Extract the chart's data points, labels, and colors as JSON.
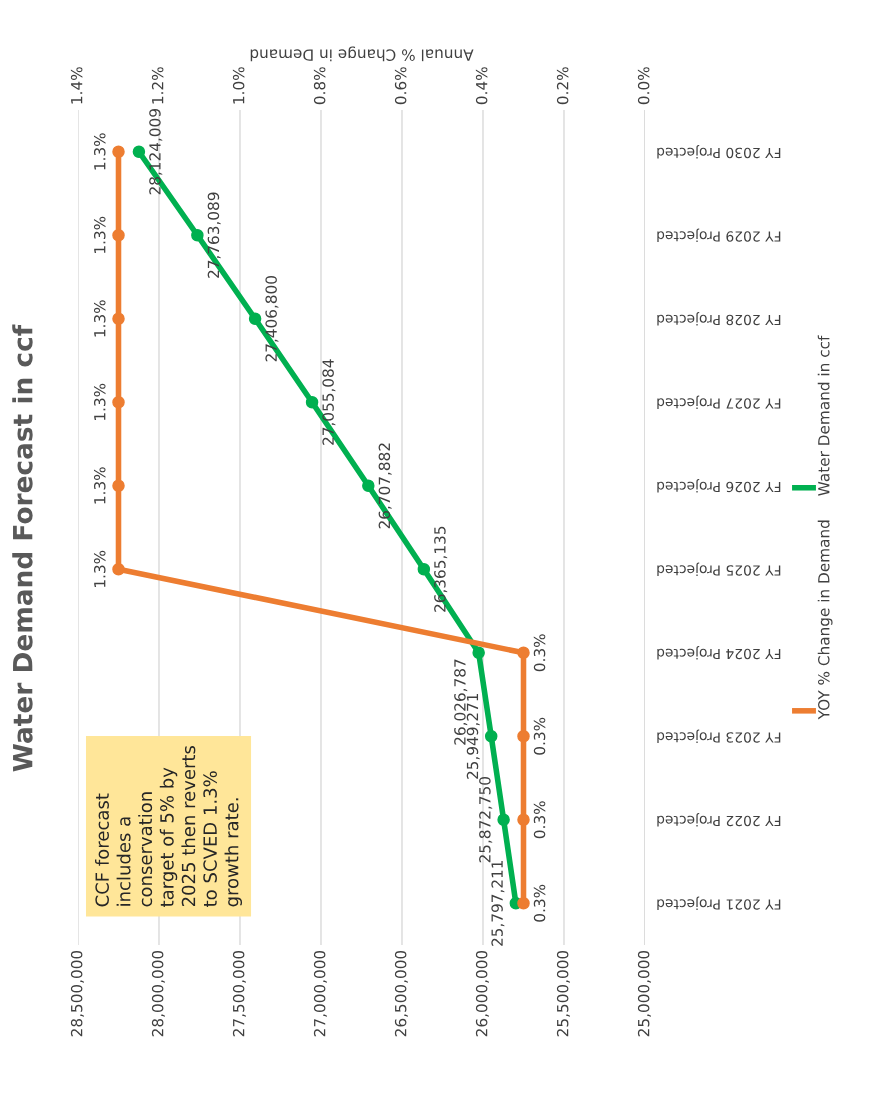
{
  "chart_data": {
    "type": "line",
    "orientation": "horizontal",
    "title": "Water Demand Forecast in ccf",
    "x2label": "Annual % Change in Demand",
    "categories": [
      "FY 2030 Projected",
      "FY 2029 Projected",
      "FY 2028 Projected",
      "FY 2027 Projected",
      "FY 2026 Projected",
      "FY 2025 Projected",
      "FY 2024 Projected",
      "FY 2023 Projected",
      "FY 2022 Projected",
      "FY 2021 Projected"
    ],
    "series": [
      {
        "name": "Water Demand in ccf",
        "color": "#00b050",
        "values": [
          28124009,
          27763089,
          27406800,
          27055084,
          26707882,
          26365135,
          26026787,
          25949271,
          25872750,
          25797211
        ],
        "value_labels": [
          "28,124,009",
          "27,763,089",
          "27,406,800",
          "27,055,084",
          "26,707,882",
          "26,365,135",
          "26,026,787",
          "25,949,271",
          "25,872,750",
          "25,797,211"
        ]
      },
      {
        "name": "YOY % Change in Demand",
        "color": "#ed7d31",
        "axis": "x2",
        "values": [
          1.3,
          1.3,
          1.3,
          1.3,
          1.3,
          1.3,
          0.3,
          0.3,
          0.3,
          0.3
        ],
        "value_labels": [
          "1.3%",
          "1.3%",
          "1.3%",
          "1.3%",
          "1.3%",
          "1.3%",
          "0.3%",
          "0.3%",
          "0.3%",
          "0.3%"
        ]
      }
    ],
    "xlim": [
      28500000,
      25000000
    ],
    "xticks": [
      {
        "value": 28500000,
        "label": "28,500,000"
      },
      {
        "value": 28000000,
        "label": "28,000,000"
      },
      {
        "value": 27500000,
        "label": "27,500,000"
      },
      {
        "value": 27000000,
        "label": "27,000,000"
      },
      {
        "value": 26500000,
        "label": "26,500,000"
      },
      {
        "value": 26000000,
        "label": "26,000,000"
      },
      {
        "value": 25500000,
        "label": "25,500,000"
      },
      {
        "value": 25000000,
        "label": "25,000,000"
      }
    ],
    "x2lim": [
      1.4,
      0.0
    ],
    "x2ticks": [
      {
        "value": 1.4,
        "label": "1.4%"
      },
      {
        "value": 1.2,
        "label": "1.2%"
      },
      {
        "value": 1.0,
        "label": "1.0%"
      },
      {
        "value": 0.8,
        "label": "0.8%"
      },
      {
        "value": 0.6,
        "label": "0.6%"
      },
      {
        "value": 0.4,
        "label": "0.4%"
      },
      {
        "value": 0.2,
        "label": "0.2%"
      },
      {
        "value": 0.0,
        "label": "0.0%"
      }
    ],
    "grid": "x",
    "marker": "circle",
    "legend": "right",
    "annotations": [
      "CCF forecast\nincludes a\nconservation\ntarget of 5% by\n2025 then reverts\nto SCVED 1.3%\ngrowth rate."
    ]
  }
}
